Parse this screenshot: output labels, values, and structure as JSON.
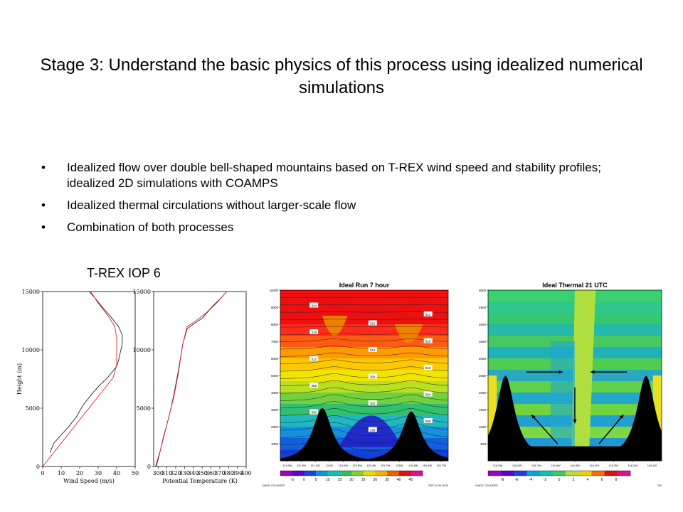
{
  "slide": {
    "title": "Stage 3: Understand the basic physics of this process using idealized numerical simulations",
    "bullets": [
      "Idealized flow over double bell-shaped mountains based on T-REX wind speed and stability profiles; idealized 2D simulations with COAMPS",
      "Idealized thermal circulations without larger-scale flow",
      "Combination of both processes"
    ],
    "figure_caption": "T-REX IOP 6"
  },
  "colors": {
    "observed_line": "#222222",
    "ideal_line": "#e0292b",
    "mountain": "#000000"
  },
  "chart_data": [
    {
      "type": "line",
      "xlabel": "Wind Speed (m/s)",
      "ylabel": "Height (m)",
      "xlim": [
        0,
        50
      ],
      "ylim": [
        0,
        15000
      ],
      "xticks": [
        "0",
        "10",
        "20",
        "30",
        "40",
        "50"
      ],
      "yticks": [
        "0",
        "5000",
        "10000",
        "15000"
      ],
      "series": [
        {
          "x": [
            4,
            6,
            10,
            14,
            18,
            22,
            27,
            31,
            35,
            38,
            40,
            41,
            42,
            43,
            43,
            41,
            37,
            32,
            28,
            25
          ],
          "y": [
            1200,
            2000,
            2700,
            3400,
            4200,
            5300,
            6300,
            7000,
            7600,
            8200,
            8600,
            9100,
            9800,
            10500,
            11300,
            12000,
            12800,
            13700,
            14500,
            15000
          ]
        },
        {
          "x": [
            0,
            10,
            20,
            30,
            38,
            40,
            40,
            40,
            39,
            35,
            30,
            26
          ],
          "y": [
            0,
            2000,
            4000,
            6000,
            7600,
            8700,
            9800,
            11000,
            12000,
            13000,
            14000,
            15000
          ]
        }
      ]
    },
    {
      "type": "line",
      "xlabel": "Potential Temperature (K)",
      "xlim": [
        295,
        400
      ],
      "ylim": [
        0,
        15000
      ],
      "xticks": [
        "300",
        "310",
        "320",
        "330",
        "340",
        "350",
        "360",
        "370",
        "380",
        "390",
        "400"
      ],
      "yticks": [
        "0",
        "5000",
        "10000",
        "15000"
      ],
      "series": [
        {
          "x": [
            298,
            302,
            306,
            310,
            314,
            318,
            323,
            328,
            333,
            340,
            350,
            358,
            366,
            372,
            378
          ],
          "y": [
            0,
            1200,
            2500,
            3600,
            4800,
            6200,
            8200,
            10500,
            11800,
            12200,
            12700,
            13400,
            14000,
            14500,
            15000
          ]
        },
        {
          "x": [
            297,
            303,
            308,
            313,
            318,
            323,
            328,
            333,
            345,
            355,
            365,
            372,
            378
          ],
          "y": [
            0,
            1500,
            3000,
            4500,
            6000,
            8000,
            10500,
            12000,
            12600,
            13200,
            14000,
            14500,
            15000
          ]
        }
      ]
    },
    {
      "type": "heatmap",
      "title": "Ideal Run 7 hour",
      "ylim": [
        0,
        10000
      ],
      "yticks": [
        "1000",
        "2000",
        "3000",
        "4000",
        "5000",
        "6000",
        "7000",
        "8000",
        "9000",
        "10000"
      ],
      "xticks": [
        "111.6W",
        "111.4W",
        "111.2W",
        "111W",
        "115.8W",
        "115.6W",
        "115.4W",
        "115.2W",
        "115W",
        "116.8W",
        "116.6W",
        "116.7W"
      ],
      "colorbar_ticks": [
        "-5",
        "0",
        "5",
        "10",
        "15",
        "20",
        "25",
        "30",
        "35",
        "40",
        "45"
      ],
      "footer": [
        "GrADS: COLA/IGES",
        "2007-04-30-15:00"
      ],
      "contour_labels": [
        "294",
        "296",
        "298",
        "300",
        "302",
        "304",
        "306",
        "308",
        "310",
        "312",
        "314",
        "316",
        "318",
        "320",
        "322",
        "324"
      ]
    },
    {
      "type": "heatmap",
      "title": "Ideal Thermal 21 UTC",
      "ylim": [
        0,
        5000
      ],
      "yticks": [
        "500",
        "1000",
        "1500",
        "2000",
        "2500",
        "3000",
        "3500",
        "4000",
        "4500",
        "5000"
      ],
      "xticks": [
        "116.9W",
        "116.8W",
        "116.7W",
        "116.6W",
        "116.5W",
        "116.4W",
        "116.3W",
        "116.2W",
        "116.1W"
      ],
      "colorbar_ticks": [
        "-8",
        "-6",
        "-4",
        "-2",
        "0",
        "2",
        "4",
        "6",
        "8"
      ],
      "footer": [
        "GrADS: COLA/IGES",
        "200"
      ]
    }
  ]
}
